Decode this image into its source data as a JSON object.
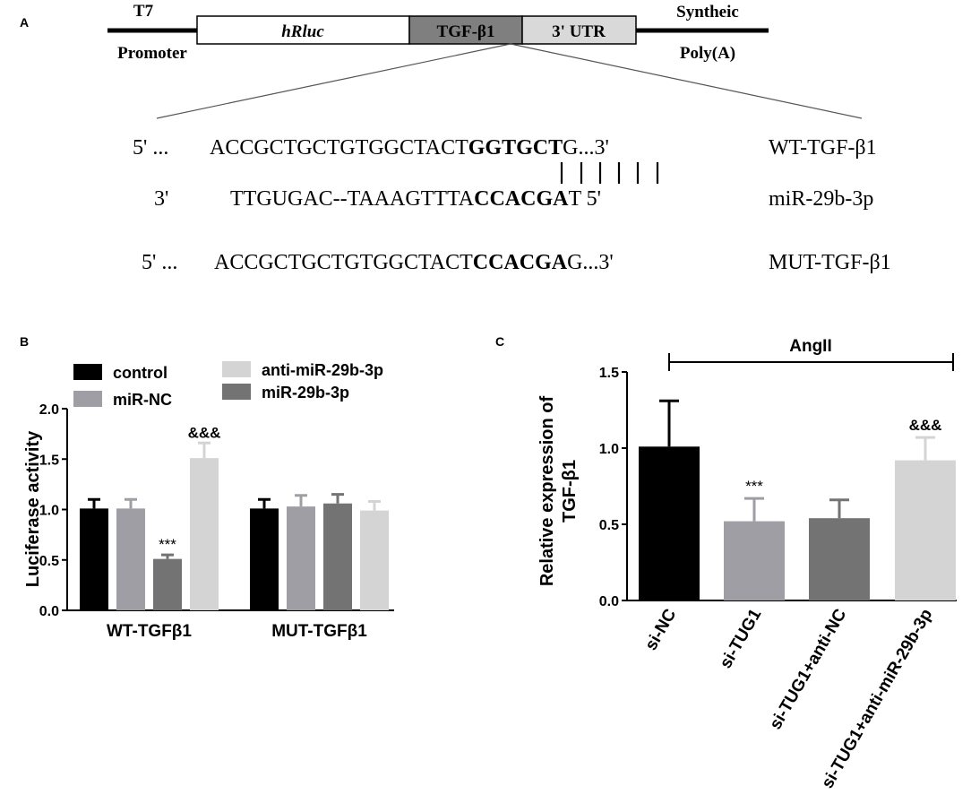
{
  "panels": {
    "a": "A",
    "b": "B",
    "c": "C"
  },
  "construct": {
    "left_top": "T7",
    "left_bottom": "Promoter",
    "box_hrluc": "hRluc",
    "box_tgf": "TGF-β1",
    "box_utr": "3' UTR",
    "right_top": "Syntheic",
    "right_bottom": "Poly(A)",
    "colors": {
      "hrluc": "#ffffff",
      "tgf": "#7f7f7f",
      "utr": "#d9d9d9"
    }
  },
  "sequences": {
    "wt": {
      "prefix": "5' ...",
      "normal": "ACCGCTGCTGTGGCTACT",
      "bold": "GGTGCT",
      "tail": "G...3'",
      "label": "WT-TGF-β1"
    },
    "mir": {
      "prefix": "3'",
      "normal": "TTGUGAC--TAAAGTTTA",
      "bold1": "C",
      "bold2": "CACGA",
      "tail": "T 5'",
      "label": "miR-29b-3p"
    },
    "mut": {
      "prefix": "5' ...",
      "normal": "ACCGCTGCTGTGGCTACT",
      "bold": "CCACGA",
      "tail": "G...3'",
      "label": "MUT-TGF-β1"
    }
  },
  "chart_data": [
    {
      "type": "bar",
      "ylabel": "Luciferase activity",
      "ylim": [
        0,
        2.0
      ],
      "yticks": [
        "0.0",
        "0.5",
        "1.0",
        "1.5",
        "2.0"
      ],
      "categories": [
        "WT-TGFβ1",
        "MUT-TGFβ1"
      ],
      "series": [
        {
          "name": "control",
          "color": "#000000",
          "values": [
            1.01,
            1.01
          ],
          "errors": [
            0.09,
            0.09
          ]
        },
        {
          "name": "miR-NC",
          "color": "#9e9ea4",
          "values": [
            1.01,
            1.03
          ],
          "errors": [
            0.09,
            0.11
          ]
        },
        {
          "name": "miR-29b-3p",
          "color": "#737373",
          "values": [
            0.51,
            1.06
          ],
          "errors": [
            0.04,
            0.09
          ]
        },
        {
          "name": "anti-miR-29b-3p",
          "color": "#d4d4d4",
          "values": [
            1.51,
            0.99
          ],
          "errors": [
            0.15,
            0.09
          ]
        }
      ],
      "annotations": [
        {
          "category": "WT-TGFβ1",
          "series": "miR-29b-3p",
          "text": "***"
        },
        {
          "category": "WT-TGFβ1",
          "series": "anti-miR-29b-3p",
          "text": "&&&"
        }
      ],
      "legend_order": [
        "control",
        "anti-miR-29b-3p",
        "miR-NC",
        "miR-29b-3p"
      ],
      "legend": "top-left"
    },
    {
      "type": "bar",
      "ylabel_line1": "Relative expression of",
      "ylabel_line2": "TGF-β1",
      "ylim": [
        0,
        1.5
      ],
      "yticks": [
        "0.0",
        "0.5",
        "1.0",
        "1.5"
      ],
      "bracket_label": "AngII",
      "categories": [
        "si-NC",
        "si-TUG1",
        "si-TUG1+anti-NC",
        "si-TUG1+anti-miR-29b-3p"
      ],
      "values": [
        1.01,
        0.52,
        0.54,
        0.92
      ],
      "errors": [
        0.3,
        0.15,
        0.12,
        0.15
      ],
      "colors": [
        "#000000",
        "#9e9ea4",
        "#737373",
        "#d4d4d4"
      ],
      "annotations": [
        {
          "category": "si-TUG1",
          "text": "***"
        },
        {
          "category": "si-TUG1+anti-miR-29b-3p",
          "text": "&&&"
        }
      ]
    }
  ]
}
